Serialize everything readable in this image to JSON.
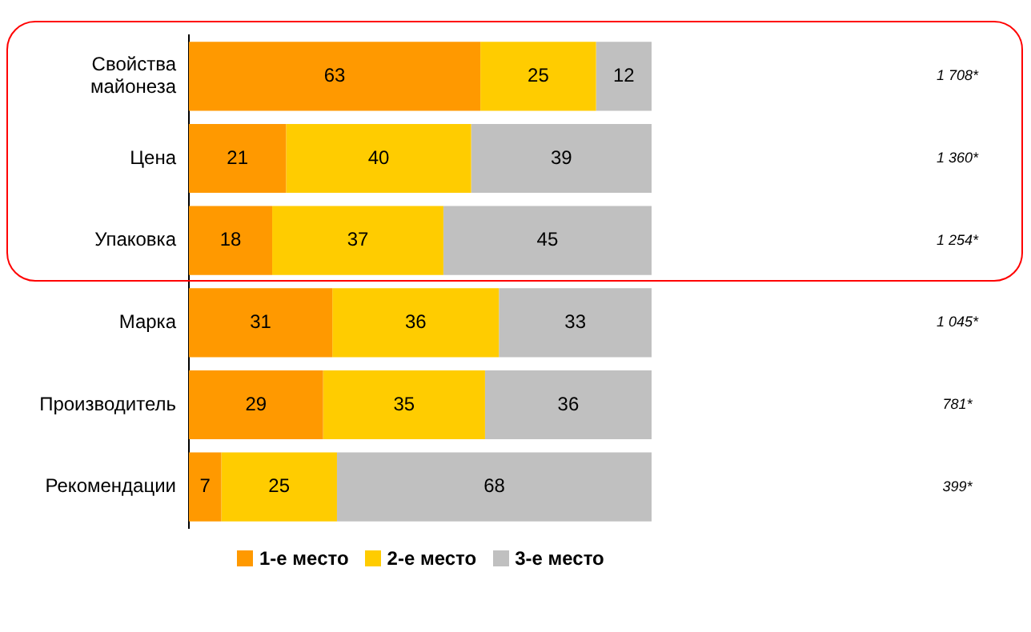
{
  "chart_data": {
    "type": "bar",
    "orientation": "horizontal",
    "stacked": true,
    "categories": [
      "Свойства майонеза",
      "Цена",
      "Упаковка",
      "Марка",
      "Производитель",
      "Рекомендации"
    ],
    "series": [
      {
        "name": "1-е место",
        "color": "#ff9900",
        "values": [
          63,
          21,
          18,
          31,
          29,
          7
        ]
      },
      {
        "name": "2-е место",
        "color": "#ffcc00",
        "values": [
          25,
          40,
          37,
          36,
          35,
          25
        ]
      },
      {
        "name": "3-е место",
        "color": "#c0c0c0",
        "values": [
          12,
          39,
          45,
          33,
          36,
          68
        ]
      }
    ],
    "xlim": [
      0,
      100
    ],
    "tick_labels": "y",
    "data_labels": true,
    "annotations": [
      "1 708*",
      "1 360*",
      "1 254*",
      "1 045*",
      "781*",
      "399*"
    ],
    "legend": "bottom"
  }
}
